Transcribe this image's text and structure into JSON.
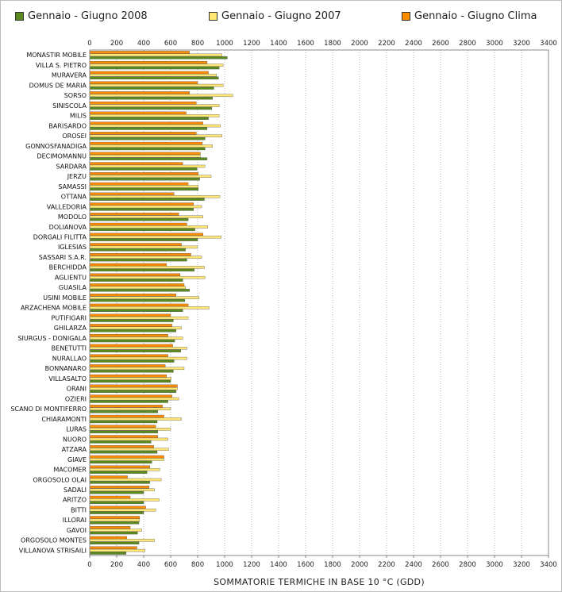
{
  "chart_data": {
    "type": "bar",
    "orientation": "horizontal",
    "xlabel": "SOMMATORIE TERMICHE IN BASE 10 °C (GDD)",
    "ylabel": "",
    "xlim": [
      0,
      3400
    ],
    "xticks": [
      0,
      200,
      400,
      600,
      800,
      1000,
      1200,
      1400,
      1600,
      1800,
      2000,
      2200,
      2400,
      2600,
      2800,
      3000,
      3200,
      3400
    ],
    "grid": "vertical dotted",
    "legend_position": "top",
    "categories": [
      "MONASTIR MOBILE",
      "VILLA S. PIETRO",
      "MURAVERA",
      "DOMUS DE MARIA",
      "SORSO",
      "SINISCOLA",
      "MILIS",
      "BARISARDO",
      "OROSEI",
      "GONNOSFANADIGA",
      "DECIMOMANNU",
      "SARDARA",
      "JERZU",
      "SAMASSI",
      "OTTANA",
      "VALLEDORIA",
      "MODOLO",
      "DOLIANOVA",
      "DORGALI FILITTA",
      "IGLESIAS",
      "SASSARI S.A.R.",
      "BERCHIDDA",
      "AGLIENTU",
      "GUASILA",
      "USINI MOBILE",
      "ARZACHENA MOBILE",
      "PUTIFIGARI",
      "GHILARZA",
      "SIURGUS - DONIGALA",
      "BENETUTTI",
      "NURALLAO",
      "BONNANARO",
      "VILLASALTO",
      "ORANI",
      "OZIERI",
      "SCANO DI MONTIFERRO",
      "CHIARAMONTI",
      "LURAS",
      "NUORO",
      "ATZARA",
      "GIAVE",
      "MACOMER",
      "ORGOSOLO OLAI",
      "SADALI",
      "ARITZO",
      "BITTI",
      "ILLORAI",
      "GAVOI",
      "ORGOSOLO MONTES",
      "VILLANOVA STRISAILI"
    ],
    "series": [
      {
        "name": "Gennaio - Giugno 2008",
        "color": "#5a8a1e",
        "values": [
          1020,
          960,
          955,
          920,
          910,
          905,
          880,
          870,
          855,
          855,
          870,
          795,
          815,
          805,
          850,
          770,
          730,
          780,
          800,
          710,
          720,
          775,
          690,
          740,
          705,
          690,
          620,
          640,
          630,
          675,
          625,
          620,
          600,
          640,
          580,
          505,
          500,
          505,
          455,
          500,
          460,
          425,
          445,
          400,
          400,
          400,
          365,
          355,
          365,
          270
        ]
      },
      {
        "name": "Gennaio - Giugno 2007",
        "color": "#ffe675",
        "values": [
          980,
          990,
          940,
          990,
          1060,
          960,
          960,
          970,
          980,
          910,
          820,
          855,
          900,
          805,
          965,
          830,
          840,
          875,
          975,
          800,
          830,
          850,
          855,
          710,
          810,
          885,
          730,
          680,
          690,
          720,
          720,
          700,
          605,
          650,
          660,
          600,
          680,
          600,
          580,
          585,
          550,
          520,
          530,
          480,
          515,
          490,
          370,
          385,
          480,
          410
        ]
      },
      {
        "name": "Gennaio - Giugno Clima",
        "color": "#ff8c00",
        "values": [
          740,
          870,
          880,
          800,
          740,
          790,
          715,
          840,
          790,
          835,
          820,
          690,
          805,
          730,
          625,
          770,
          660,
          720,
          840,
          680,
          750,
          570,
          670,
          700,
          640,
          730,
          600,
          610,
          580,
          615,
          580,
          560,
          570,
          650,
          610,
          540,
          550,
          490,
          505,
          475,
          550,
          445,
          280,
          440,
          300,
          415,
          370,
          300,
          275,
          350
        ]
      }
    ]
  }
}
